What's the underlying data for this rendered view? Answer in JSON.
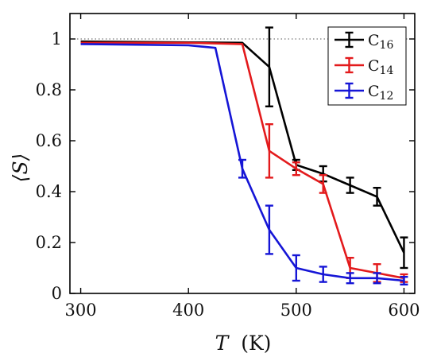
{
  "chart_data": {
    "type": "line",
    "xlabel": {
      "symbol": "T",
      "unit": "(K)"
    },
    "ylabel": "⟨S⟩",
    "xlim": [
      290,
      610
    ],
    "ylim": [
      0,
      1.1
    ],
    "x_ticks": [
      "300",
      "400",
      "500",
      "600"
    ],
    "y_ticks": [
      "0",
      "0.2",
      "0.4",
      "0.6",
      "0.8",
      "1"
    ],
    "reference_line": {
      "y": 1.0,
      "style": "dotted"
    },
    "legend_position": "top-right",
    "series": [
      {
        "name": "C16",
        "label_base": "C",
        "label_sub": "16",
        "color": "#000000",
        "x": [
          300,
          450,
          475,
          500,
          525,
          550,
          575,
          600
        ],
        "y": [
          0.99,
          0.985,
          0.89,
          0.505,
          0.47,
          0.425,
          0.38,
          0.16
        ],
        "err": [
          0.0,
          0.0,
          0.155,
          0.02,
          0.03,
          0.03,
          0.035,
          0.06
        ]
      },
      {
        "name": "C14",
        "label_base": "C",
        "label_sub": "14",
        "color": "#e31a1c",
        "x": [
          300,
          400,
          450,
          475,
          500,
          525,
          550,
          575,
          600
        ],
        "y": [
          0.985,
          0.985,
          0.98,
          0.56,
          0.49,
          0.43,
          0.1,
          0.08,
          0.06
        ],
        "err": [
          0.0,
          0.0,
          0.0,
          0.105,
          0.025,
          0.035,
          0.04,
          0.035,
          0.015
        ]
      },
      {
        "name": "C12",
        "label_base": "C",
        "label_sub": "12",
        "color": "#1515d6",
        "x": [
          300,
          400,
          425,
          450,
          475,
          500,
          525,
          550,
          575,
          600
        ],
        "y": [
          0.98,
          0.975,
          0.965,
          0.49,
          0.25,
          0.1,
          0.075,
          0.06,
          0.06,
          0.05
        ],
        "err": [
          0.0,
          0.0,
          0.0,
          0.035,
          0.095,
          0.05,
          0.03,
          0.02,
          0.02,
          0.015
        ]
      }
    ]
  }
}
